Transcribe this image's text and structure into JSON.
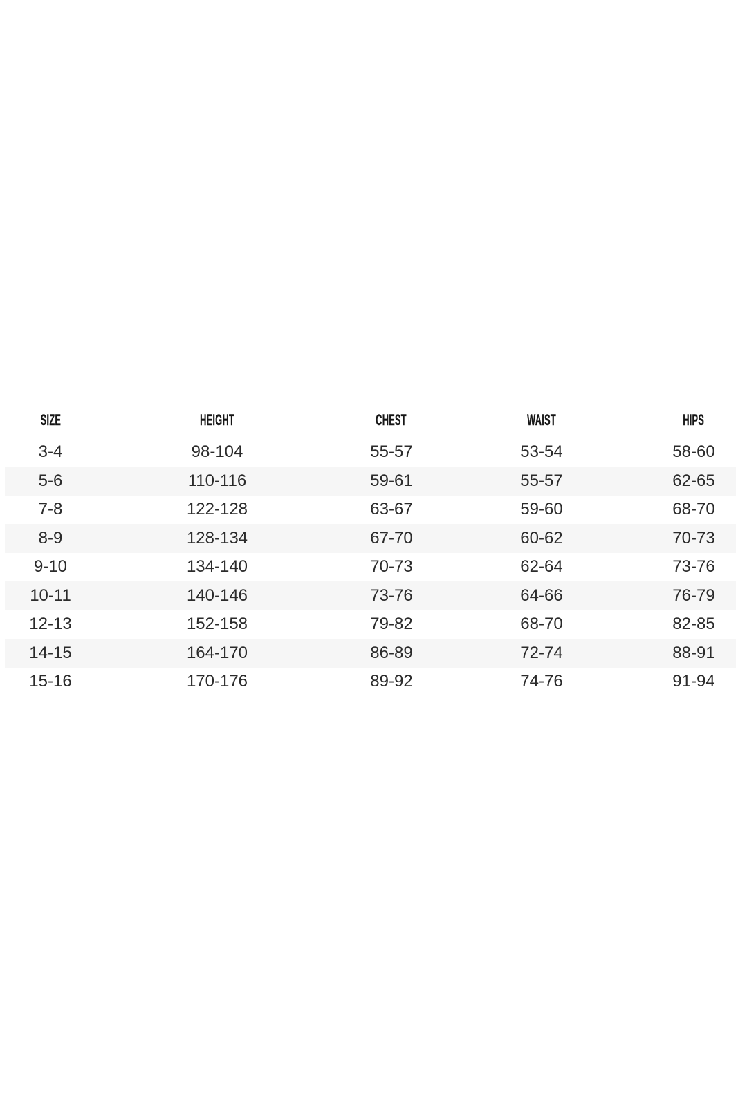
{
  "page": {
    "background": "#ffffff"
  },
  "sizeChart": {
    "stripe_color": "#f6f6f6",
    "header_text_color": "#161616",
    "body_text_color": "#2b2b2b",
    "columns": [
      "SIZE",
      "HEIGHT",
      "CHEST",
      "WAIST",
      "HIPS"
    ],
    "rows": [
      [
        "3-4",
        "98-104",
        "55-57",
        "53-54",
        "58-60"
      ],
      [
        "5-6",
        "110-116",
        "59-61",
        "55-57",
        "62-65"
      ],
      [
        "7-8",
        "122-128",
        "63-67",
        "59-60",
        "68-70"
      ],
      [
        "8-9",
        "128-134",
        "67-70",
        "60-62",
        "70-73"
      ],
      [
        "9-10",
        "134-140",
        "70-73",
        "62-64",
        "73-76"
      ],
      [
        "10-11",
        "140-146",
        "73-76",
        "64-66",
        "76-79"
      ],
      [
        "12-13",
        "152-158",
        "79-82",
        "68-70",
        "82-85"
      ],
      [
        "14-15",
        "164-170",
        "86-89",
        "72-74",
        "88-91"
      ],
      [
        "15-16",
        "170-176",
        "89-92",
        "74-76",
        "91-94"
      ]
    ]
  }
}
